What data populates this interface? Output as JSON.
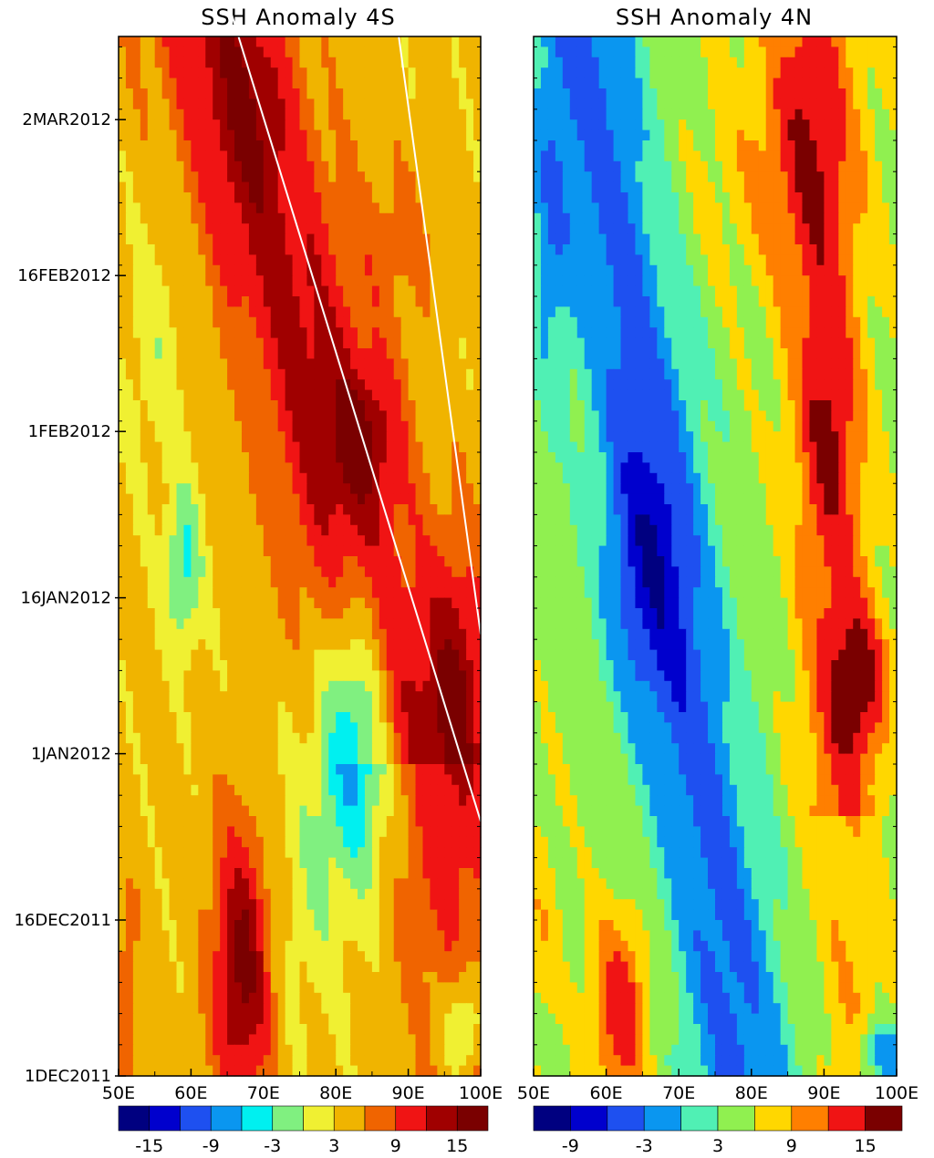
{
  "chart_data": [
    {
      "type": "heatmap",
      "title": "SSH Anomaly 4S",
      "xlabel": "",
      "ylabel": "",
      "x_tick_labels": [
        "50E",
        "60E",
        "70E",
        "80E",
        "90E",
        "100E"
      ],
      "x_ticks": [
        50,
        60,
        70,
        80,
        90,
        100
      ],
      "xlim": [
        50,
        100
      ],
      "y_tick_labels": [
        "1DEC2011",
        "16DEC2011",
        "1JAN2012",
        "16JAN2012",
        "1FEB2012",
        "16FEB2012",
        "2MAR2012"
      ],
      "y_ticks_days": [
        0,
        15,
        31,
        46,
        62,
        77,
        92
      ],
      "ylim_days": [
        0,
        100
      ],
      "colorbar": {
        "levels": [
          -18,
          -15,
          -12,
          -9,
          -6,
          -3,
          0,
          3,
          6,
          9,
          12,
          15,
          18
        ],
        "tick_labels": [
          "-15",
          "-9",
          "-3",
          "3",
          "9",
          "15"
        ],
        "colors": [
          "#000080",
          "#0000cd",
          "#1e50f0",
          "#0a96f0",
          "#00f0f0",
          "#80f080",
          "#f0f032",
          "#f0b400",
          "#f06400",
          "#f01414",
          "#a00000",
          "#7a0000"
        ]
      },
      "annotations": [
        {
          "type": "line",
          "from_lon": 65,
          "from_day": 102,
          "to_lon": 100,
          "to_day": 24.5
        },
        {
          "type": "line",
          "from_lon": 88,
          "from_day": 102,
          "to_lon": 100,
          "to_day": 42.5
        }
      ],
      "features": [
        {
          "kind": "positive_band",
          "description_values": [
            [
              60,
              100,
              12
            ],
            [
              70,
              80,
              14
            ],
            [
              84,
              62,
              18
            ],
            [
              98,
              40,
              18
            ]
          ]
        },
        {
          "kind": "negative_patch",
          "center": [
            83,
            32
          ],
          "min_value": -9
        },
        {
          "kind": "negative_patch",
          "center": [
            59,
            48
          ],
          "min_value": -5
        },
        {
          "kind": "positive_patch",
          "center": [
            67,
            10
          ],
          "min_value": 16
        }
      ]
    },
    {
      "type": "heatmap",
      "title": "SSH Anomaly 4N",
      "xlabel": "",
      "ylabel": "",
      "x_tick_labels": [
        "50E",
        "60E",
        "70E",
        "80E",
        "90E",
        "100E"
      ],
      "x_ticks": [
        50,
        60,
        70,
        80,
        90,
        100
      ],
      "xlim": [
        50,
        100
      ],
      "y_tick_labels": [],
      "ylim_days": [
        0,
        100
      ],
      "colorbar": {
        "levels": [
          -12,
          -9,
          -6,
          -3,
          0,
          3,
          6,
          9,
          12,
          15,
          18
        ],
        "tick_labels": [
          "-9",
          "-3",
          "3",
          "9",
          "15"
        ],
        "colors": [
          "#000080",
          "#0000cd",
          "#1e50f0",
          "#0a96f0",
          "#50f0b4",
          "#90f050",
          "#ffd700",
          "#ff7f00",
          "#f01414",
          "#7a0000"
        ]
      },
      "features": [
        {
          "kind": "negative_band",
          "center": [
            66,
            48
          ],
          "min_value": -10
        },
        {
          "kind": "positive_band",
          "center": [
            93,
            40
          ],
          "min_value": 16
        },
        {
          "kind": "positive_patch",
          "center": [
            62,
            5
          ],
          "min_value": 14
        }
      ]
    }
  ],
  "panels": [
    {
      "title": "SSH Anomaly 4S"
    },
    {
      "title": "SSH Anomaly 4N"
    }
  ]
}
